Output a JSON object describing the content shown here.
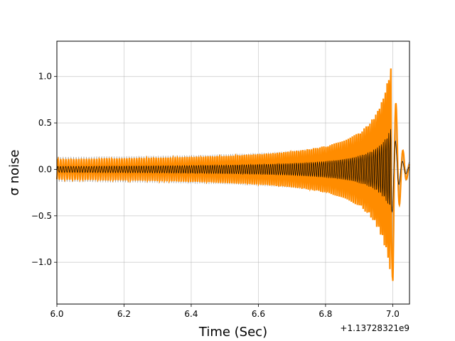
{
  "chart_data": {
    "type": "line",
    "xlabel": "Time (Sec)",
    "ylabel": "σ noise",
    "x_offset_label": "+1.13728321e9",
    "xlim": [
      6.0,
      7.05
    ],
    "ylim": [
      -1.45,
      1.38
    ],
    "x_ticks": [
      {
        "value": 6.0,
        "label": "6.0"
      },
      {
        "value": 6.2,
        "label": "6.2"
      },
      {
        "value": 6.4,
        "label": "6.4"
      },
      {
        "value": 6.6,
        "label": "6.6"
      },
      {
        "value": 6.8,
        "label": "6.8"
      },
      {
        "value": 7.0,
        "label": "7.0"
      }
    ],
    "y_ticks": [
      {
        "value": -1.0,
        "label": "−1.0"
      },
      {
        "value": -0.5,
        "label": "−0.5"
      },
      {
        "value": 0.0,
        "label": "0.0"
      },
      {
        "value": 0.5,
        "label": "0.5"
      },
      {
        "value": 1.0,
        "label": "1.0"
      }
    ],
    "grid": true,
    "series": [
      {
        "kind": "band",
        "color": "#bbbbbb",
        "description_of_shape": "chirp waveform confidence band",
        "model": {
          "t_merge": 7.0,
          "f0": 32,
          "amp0": 0.06,
          "amp_peak": 0.75
        }
      },
      {
        "kind": "line",
        "color": "#ff8c00",
        "model": {
          "t_merge": 7.0,
          "f0": 32,
          "amp0": 0.08,
          "amp_peak": 1.28
        }
      },
      {
        "kind": "line",
        "color": "#000000",
        "model": {
          "t_merge": 7.0,
          "f0": 32,
          "amp0": 0.02,
          "amp_peak": 0.5
        }
      }
    ]
  }
}
